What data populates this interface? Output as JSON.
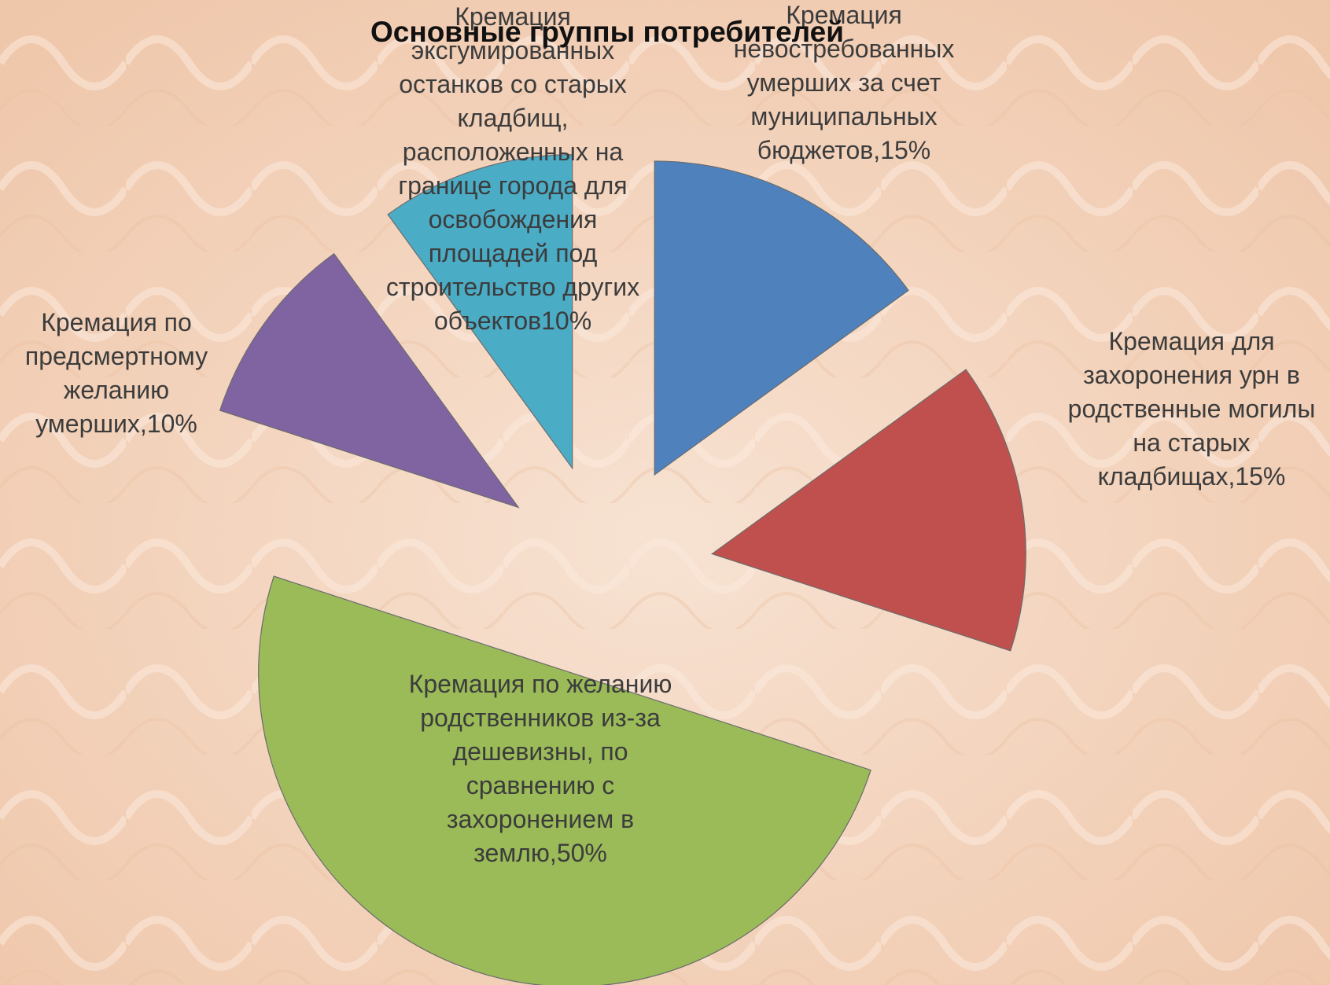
{
  "chart_data": {
    "type": "pie",
    "title": "Основные группы потребителей",
    "values": [
      15,
      15,
      50,
      10,
      10
    ],
    "value_labels": [
      "Кремация\nневостребованных\nумерших за счет\nмуниципальных\nбюджетов,15%",
      "Кремация для\nзахоронения урн в\nродственные могилы\nна старых\nкладбищах,15%",
      "Кремация по желанию\nродственников из-за\nдешевизны, по\nсравнению с\nзахоронением в\nземлю,50%",
      "Кремация по\nпредсмертному\nжеланию\nумерших,10%",
      "Кремация\nэксгумированных\nостанков со старых\nкладбищ,\nрасположенных на\nгранице города для\nосвобождения\nплощадей под\nстроительство других\nобъектов10%"
    ],
    "colors": [
      "#4f81bd",
      "#c0504d",
      "#9bbb59",
      "#8064a2",
      "#4bacc6"
    ],
    "exploded": true
  }
}
